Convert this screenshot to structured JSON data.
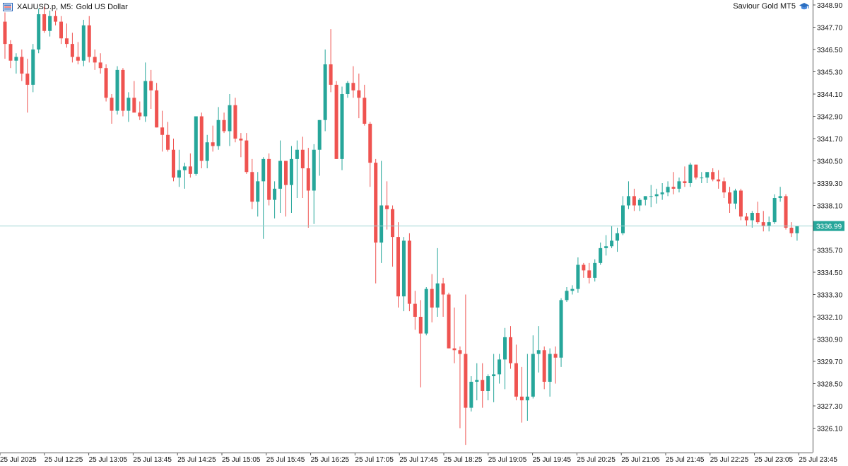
{
  "header": {
    "symbol": "XAUUSD.p, M5:",
    "description": "Gold US Dollar",
    "menu_icon": "chart-menu-icon",
    "brand": "Saviour Gold MT5",
    "brand_icon": "graduation-cap-icon"
  },
  "colors": {
    "bull": "#26a69a",
    "bear": "#ef5350",
    "current_line": "#9ed4d2",
    "price_tag": "#26a69a",
    "axis": "#555555",
    "text": "#111111"
  },
  "chart_data": {
    "type": "candlestick",
    "symbol": "XAUUSD.p",
    "timeframe": "M5",
    "ylim": [
      3325.0,
      3349.0
    ],
    "y_ticks": [
      "3348.90",
      "3347.70",
      "3346.50",
      "3345.30",
      "3344.10",
      "3342.90",
      "3341.70",
      "3340.50",
      "3339.30",
      "3338.10",
      "3336.90",
      "3335.70",
      "3334.50",
      "3333.30",
      "3332.10",
      "3330.90",
      "3329.70",
      "3328.50",
      "3327.30",
      "3326.10"
    ],
    "x_ticks": [
      "25 Jul 2025",
      "25 Jul 12:25",
      "25 Jul 13:05",
      "25 Jul 13:45",
      "25 Jul 14:25",
      "25 Jul 15:05",
      "25 Jul 15:45",
      "25 Jul 16:25",
      "25 Jul 17:05",
      "25 Jul 17:45",
      "25 Jul 18:25",
      "25 Jul 19:05",
      "25 Jul 19:45",
      "25 Jul 20:25",
      "25 Jul 21:05",
      "25 Jul 21:45",
      "25 Jul 22:25",
      "25 Jul 23:05",
      "25 Jul 23:45"
    ],
    "current_price": "3336.99",
    "candles": [
      [
        3348.0,
        3348.5,
        3346.0,
        3346.8
      ],
      [
        3346.8,
        3347.0,
        3345.5,
        3345.9
      ],
      [
        3345.9,
        3346.3,
        3345.2,
        3346.1
      ],
      [
        3346.1,
        3346.5,
        3344.8,
        3345.2
      ],
      [
        3345.2,
        3346.0,
        3343.1,
        3344.6
      ],
      [
        3344.6,
        3346.8,
        3344.2,
        3346.5
      ],
      [
        3346.5,
        3348.7,
        3346.3,
        3348.4
      ],
      [
        3348.4,
        3348.8,
        3347.4,
        3347.5
      ],
      [
        3347.5,
        3348.6,
        3347.2,
        3348.3
      ],
      [
        3348.3,
        3348.6,
        3347.8,
        3348.0
      ],
      [
        3348.0,
        3348.3,
        3346.8,
        3347.1
      ],
      [
        3347.1,
        3347.9,
        3346.6,
        3346.8
      ],
      [
        3346.8,
        3347.4,
        3345.8,
        3346.1
      ],
      [
        3346.1,
        3346.9,
        3345.7,
        3345.9
      ],
      [
        3345.9,
        3348.1,
        3345.6,
        3347.8
      ],
      [
        3347.8,
        3348.3,
        3345.8,
        3346.1
      ],
      [
        3346.1,
        3346.5,
        3345.4,
        3345.8
      ],
      [
        3345.8,
        3346.3,
        3345.2,
        3345.5
      ],
      [
        3345.5,
        3345.7,
        3343.7,
        3343.9
      ],
      [
        3343.9,
        3344.1,
        3342.5,
        3343.2
      ],
      [
        3343.2,
        3345.6,
        3343.0,
        3345.4
      ],
      [
        3345.4,
        3345.5,
        3342.9,
        3343.2
      ],
      [
        3343.2,
        3344.2,
        3342.6,
        3343.9
      ],
      [
        3343.9,
        3344.8,
        3343.3,
        3343.1
      ],
      [
        3343.1,
        3343.7,
        3342.7,
        3342.9
      ],
      [
        3342.9,
        3345.8,
        3342.6,
        3344.8
      ],
      [
        3344.8,
        3345.4,
        3343.3,
        3344.3
      ],
      [
        3344.3,
        3344.7,
        3342.3,
        3342.3
      ],
      [
        3342.3,
        3343.2,
        3341.0,
        3341.9
      ],
      [
        3341.9,
        3342.6,
        3341.0,
        3341.1
      ],
      [
        3341.1,
        3341.7,
        3339.4,
        3339.6
      ],
      [
        3339.6,
        3341.1,
        3339.1,
        3340.0
      ],
      [
        3340.0,
        3340.4,
        3339.0,
        3340.2
      ],
      [
        3340.2,
        3340.9,
        3339.6,
        3339.8
      ],
      [
        3339.8,
        3342.9,
        3339.7,
        3342.9
      ],
      [
        3342.9,
        3343.1,
        3340.1,
        3340.5
      ],
      [
        3340.5,
        3341.9,
        3340.1,
        3341.5
      ],
      [
        3341.5,
        3342.4,
        3341.0,
        3341.3
      ],
      [
        3341.3,
        3343.4,
        3341.1,
        3342.7
      ],
      [
        3342.7,
        3343.1,
        3342.0,
        3342.1
      ],
      [
        3342.1,
        3344.1,
        3341.3,
        3343.5
      ],
      [
        3343.5,
        3343.9,
        3341.5,
        3341.7
      ],
      [
        3341.7,
        3342.0,
        3340.7,
        3341.6
      ],
      [
        3341.6,
        3342.0,
        3339.8,
        3339.9
      ],
      [
        3339.9,
        3340.6,
        3337.9,
        3338.3
      ],
      [
        3338.3,
        3339.9,
        3337.5,
        3339.4
      ],
      [
        3339.4,
        3340.7,
        3336.3,
        3340.6
      ],
      [
        3340.6,
        3340.9,
        3338.1,
        3338.4
      ],
      [
        3338.4,
        3339.4,
        3337.4,
        3339.0
      ],
      [
        3339.0,
        3341.6,
        3337.7,
        3340.5
      ],
      [
        3340.5,
        3340.5,
        3337.5,
        3339.2
      ],
      [
        3339.2,
        3341.3,
        3337.7,
        3340.6
      ],
      [
        3340.6,
        3341.6,
        3338.5,
        3341.1
      ],
      [
        3341.1,
        3341.8,
        3338.5,
        3340.1
      ],
      [
        3340.1,
        3341.2,
        3336.9,
        3338.9
      ],
      [
        3338.9,
        3341.4,
        3337.1,
        3341.1
      ],
      [
        3341.1,
        3342.7,
        3339.7,
        3342.7
      ],
      [
        3342.7,
        3346.5,
        3342.1,
        3345.7
      ],
      [
        3345.7,
        3347.6,
        3344.2,
        3344.6
      ],
      [
        3344.6,
        3344.8,
        3340.6,
        3340.6
      ],
      [
        3340.6,
        3344.5,
        3340.0,
        3344.1
      ],
      [
        3344.1,
        3344.8,
        3343.9,
        3344.7
      ],
      [
        3344.7,
        3345.6,
        3343.9,
        3344.3
      ],
      [
        3344.3,
        3345.2,
        3342.8,
        3343.9
      ],
      [
        3343.9,
        3344.6,
        3342.4,
        3342.5
      ],
      [
        3342.5,
        3342.6,
        3339.1,
        3340.4
      ],
      [
        3340.4,
        3340.6,
        3333.9,
        3336.1
      ],
      [
        3336.1,
        3340.5,
        3335.0,
        3338.1
      ],
      [
        3338.1,
        3339.4,
        3336.8,
        3337.9
      ],
      [
        3337.9,
        3338.1,
        3334.8,
        3336.4
      ],
      [
        3336.4,
        3337.2,
        3332.6,
        3333.2
      ],
      [
        3333.2,
        3336.4,
        3332.4,
        3336.2
      ],
      [
        3336.2,
        3336.6,
        3332.4,
        3332.8
      ],
      [
        3332.8,
        3333.5,
        3331.4,
        3332.1
      ],
      [
        3332.1,
        3333.0,
        3328.3,
        3331.2
      ],
      [
        3331.2,
        3333.7,
        3331.1,
        3333.6
      ],
      [
        3333.6,
        3334.4,
        3331.8,
        3332.6
      ],
      [
        3332.6,
        3335.8,
        3332.1,
        3333.9
      ],
      [
        3333.9,
        3334.2,
        3332.1,
        3333.3
      ],
      [
        3333.3,
        3333.4,
        3330.4,
        3330.4
      ],
      [
        3330.4,
        3332.6,
        3329.6,
        3330.3
      ],
      [
        3330.3,
        3330.5,
        3326.1,
        3330.1
      ],
      [
        3330.1,
        3333.3,
        3325.2,
        3327.2
      ],
      [
        3327.2,
        3328.9,
        3327.0,
        3328.6
      ],
      [
        3328.6,
        3329.6,
        3327.6,
        3328.7
      ],
      [
        3328.7,
        3329.6,
        3327.2,
        3328.1
      ],
      [
        3328.1,
        3329.0,
        3327.6,
        3328.9
      ],
      [
        3328.9,
        3330.1,
        3327.5,
        3329.0
      ],
      [
        3329.0,
        3330.1,
        3328.5,
        3329.8
      ],
      [
        3329.8,
        3331.5,
        3328.2,
        3331.0
      ],
      [
        3331.0,
        3331.6,
        3329.3,
        3329.6
      ],
      [
        3329.6,
        3330.6,
        3327.6,
        3327.8
      ],
      [
        3327.8,
        3329.4,
        3326.4,
        3327.6
      ],
      [
        3327.6,
        3330.1,
        3326.5,
        3327.8
      ],
      [
        3327.8,
        3331.1,
        3327.7,
        3330.1
      ],
      [
        3330.1,
        3331.6,
        3329.1,
        3330.3
      ],
      [
        3330.3,
        3330.5,
        3328.2,
        3328.6
      ],
      [
        3328.6,
        3330.4,
        3327.8,
        3330.1
      ],
      [
        3330.1,
        3330.5,
        3328.5,
        3329.9
      ],
      [
        3329.9,
        3333.1,
        3329.4,
        3333.0
      ],
      [
        3333.0,
        3333.7,
        3332.9,
        3333.5
      ],
      [
        3333.5,
        3333.8,
        3333.3,
        3333.6
      ],
      [
        3333.6,
        3335.3,
        3333.4,
        3334.9
      ],
      [
        3334.9,
        3335.0,
        3334.2,
        3334.6
      ],
      [
        3334.6,
        3335.0,
        3333.9,
        3334.2
      ],
      [
        3334.2,
        3335.2,
        3334.0,
        3335.0
      ],
      [
        3335.0,
        3336.1,
        3334.9,
        3335.8
      ],
      [
        3335.8,
        3336.5,
        3335.4,
        3335.9
      ],
      [
        3335.9,
        3337.0,
        3335.8,
        3336.2
      ],
      [
        3336.2,
        3336.9,
        3335.6,
        3336.6
      ],
      [
        3336.6,
        3338.6,
        3336.5,
        3338.1
      ],
      [
        3338.1,
        3339.4,
        3337.9,
        3338.6
      ],
      [
        3338.6,
        3339.0,
        3337.8,
        3338.1
      ],
      [
        3338.1,
        3338.5,
        3337.8,
        3338.4
      ],
      [
        3338.4,
        3338.6,
        3338.1,
        3338.6
      ],
      [
        3338.6,
        3339.2,
        3338.0,
        3338.6
      ],
      [
        3338.6,
        3339.0,
        3338.2,
        3338.7
      ],
      [
        3338.7,
        3339.3,
        3338.4,
        3338.8
      ],
      [
        3338.8,
        3339.4,
        3338.6,
        3339.1
      ],
      [
        3339.1,
        3339.9,
        3338.7,
        3339.0
      ],
      [
        3339.0,
        3339.6,
        3338.8,
        3339.4
      ],
      [
        3339.4,
        3340.2,
        3339.1,
        3339.3
      ],
      [
        3339.3,
        3340.4,
        3339.1,
        3340.3
      ],
      [
        3340.3,
        3340.3,
        3339.5,
        3339.6
      ],
      [
        3339.6,
        3339.9,
        3339.3,
        3339.6
      ],
      [
        3339.6,
        3339.8,
        3339.3,
        3339.9
      ],
      [
        3339.9,
        3340.1,
        3339.4,
        3339.5
      ],
      [
        3339.5,
        3340.0,
        3339.0,
        3339.4
      ],
      [
        3339.4,
        3339.6,
        3338.5,
        3338.8
      ],
      [
        3338.8,
        3339.1,
        3337.7,
        3338.2
      ],
      [
        3338.2,
        3339.0,
        3337.9,
        3338.9
      ],
      [
        3338.9,
        3339.0,
        3337.3,
        3337.5
      ],
      [
        3337.5,
        3337.7,
        3337.0,
        3337.3
      ],
      [
        3337.3,
        3337.8,
        3336.9,
        3337.7
      ],
      [
        3337.7,
        3338.3,
        3337.1,
        3337.2
      ],
      [
        3337.2,
        3337.8,
        3336.7,
        3337.0
      ],
      [
        3337.0,
        3337.5,
        3336.7,
        3337.2
      ],
      [
        3337.2,
        3338.7,
        3337.1,
        3338.5
      ],
      [
        3338.5,
        3339.1,
        3338.3,
        3338.6
      ],
      [
        3338.6,
        3338.7,
        3336.8,
        3336.9
      ],
      [
        3336.9,
        3337.2,
        3336.4,
        3336.6
      ],
      [
        3336.6,
        3337.0,
        3336.2,
        3336.99
      ]
    ]
  }
}
